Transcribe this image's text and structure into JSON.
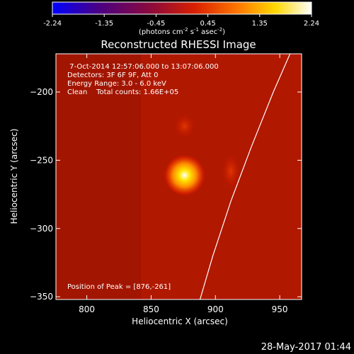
{
  "colorbar": {
    "ticks": [
      "-2.24",
      "-1.35",
      "-0.45",
      "0.45",
      "1.35",
      "2.24"
    ],
    "unit_html": "(photons cm<tspan baseline-shift=\"super\" font-size=\"7\">-2</tspan> s<tspan baseline-shift=\"super\" font-size=\"7\">-1</tspan> asec<tspan baseline-shift=\"super\" font-size=\"7\">-2</tspan>)",
    "colors": [
      "#0000ff",
      "#4b0082",
      "#8b0a3c",
      "#d82000",
      "#ff7a00",
      "#ffd800",
      "#ffffff"
    ]
  },
  "plot": {
    "title": "Reconstructed RHESSI Image",
    "xlabel": "Heliocentric X (arcsec)",
    "ylabel": "Heliocentric Y (arcsec)",
    "info_lines": [
      " 7-Oct-2014 12:57:06.000 to 13:07:06.000",
      "Detectors: 3F 6F 9F, Att 0",
      "Energy Range: 3.0 - 6.0 keV",
      "Clean    Total counts: 1.66E+05"
    ],
    "peak_label": "Position of Peak = [876,-261]"
  },
  "footer": {
    "timestamp": "28-May-2017 01:44"
  },
  "chart_data": {
    "type": "heatmap",
    "title": "Reconstructed RHESSI Image",
    "xlabel": "Heliocentric X (arcsec)",
    "ylabel": "Heliocentric Y (arcsec)",
    "xlim": [
      776,
      967
    ],
    "ylim": [
      -352,
      -172
    ],
    "xticks": [
      800,
      850,
      900,
      950
    ],
    "yticks": [
      -200,
      -250,
      -300,
      -350
    ],
    "colorbar_range": [
      -2.24,
      2.24
    ],
    "sources": [
      {
        "x": 876,
        "y": -261,
        "relative_intensity": 1.0
      },
      {
        "x": 876,
        "y": -225,
        "relative_intensity": 0.35
      },
      {
        "x": 912,
        "y": -258,
        "relative_intensity": 0.25
      }
    ],
    "peak": [
      876,
      -261
    ],
    "limb_curve": [
      [
        958,
        -172
      ],
      [
        945,
        -200
      ],
      [
        928,
        -240
      ],
      [
        912,
        -280
      ],
      [
        898,
        -320
      ],
      [
        888,
        -352
      ]
    ]
  }
}
